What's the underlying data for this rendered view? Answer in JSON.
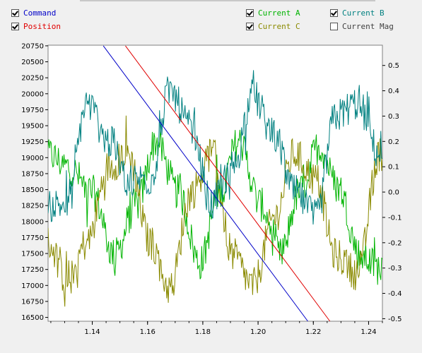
{
  "legend": {
    "items": [
      {
        "label": "Command",
        "checked": true,
        "color": "#0000c8"
      },
      {
        "label": "Position",
        "checked": true,
        "color": "#e00000"
      },
      {
        "label": "Current A",
        "checked": true,
        "color": "#00b400"
      },
      {
        "label": "Current C",
        "checked": true,
        "color": "#8a8a00"
      },
      {
        "label": "Current B",
        "checked": true,
        "color": "#008080"
      },
      {
        "label": "Current Mag",
        "checked": false,
        "color": "#404040"
      }
    ]
  },
  "chart_data": {
    "type": "line",
    "title": "",
    "xlabel": "",
    "ylabel": "",
    "y2label": "",
    "xlim": [
      1.124,
      1.245
    ],
    "ylim": [
      16440,
      20760
    ],
    "y2lim": [
      -0.51,
      0.58
    ],
    "x_ticks": [
      "1.14",
      "1.16",
      "1.18",
      "1.20",
      "1.22",
      "1.24"
    ],
    "y_ticks": [
      "20750",
      "20500",
      "20250",
      "20000",
      "19750",
      "19500",
      "19250",
      "19000",
      "18750",
      "18500",
      "18250",
      "18000",
      "17750",
      "17500",
      "17250",
      "17000",
      "16750",
      "16500"
    ],
    "y2_ticks": [
      "0.5",
      "0.4",
      "0.3",
      "0.2",
      "0.1",
      "0.0",
      "-0.1",
      "-0.2",
      "-0.3",
      "-0.4",
      "-0.5"
    ],
    "grid": false,
    "series": [
      {
        "name": "Command",
        "axis": "left",
        "color": "#0000c8",
        "x": [
          1.144,
          1.218
        ],
        "y": [
          20750,
          16440
        ]
      },
      {
        "name": "Position",
        "axis": "left",
        "color": "#e00000",
        "x": [
          1.152,
          1.226
        ],
        "y": [
          20750,
          16440
        ]
      },
      {
        "name": "Current A",
        "axis": "right",
        "color": "#00b400",
        "x": [
          1.124,
          1.131,
          1.14,
          1.148,
          1.156,
          1.163,
          1.171,
          1.179,
          1.186,
          1.193,
          1.201,
          1.208,
          1.215,
          1.222,
          1.229,
          1.237,
          1.244
        ],
        "y": [
          0.15,
          0.1,
          0.0,
          -0.25,
          -0.05,
          0.2,
          0.0,
          -0.28,
          0.0,
          0.2,
          -0.05,
          -0.25,
          0.0,
          0.18,
          0.02,
          -0.25,
          -0.3
        ]
      },
      {
        "name": "Current C",
        "axis": "right",
        "color": "#8a8a00",
        "x": [
          1.124,
          1.131,
          1.138,
          1.146,
          1.153,
          1.161,
          1.168,
          1.176,
          1.183,
          1.191,
          1.198,
          1.206,
          1.213,
          1.221,
          1.228,
          1.236,
          1.244
        ],
        "y": [
          -0.2,
          -0.35,
          -0.2,
          0.1,
          0.15,
          -0.2,
          -0.38,
          0.0,
          0.15,
          -0.25,
          -0.37,
          -0.1,
          0.15,
          0.05,
          -0.25,
          -0.32,
          0.15
        ]
      },
      {
        "name": "Current B",
        "axis": "right",
        "color": "#008080",
        "x": [
          1.124,
          1.131,
          1.138,
          1.146,
          1.153,
          1.161,
          1.168,
          1.176,
          1.183,
          1.191,
          1.198,
          1.206,
          1.213,
          1.221,
          1.228,
          1.236,
          1.244
        ],
        "y": [
          -0.05,
          -0.05,
          0.35,
          0.2,
          0.05,
          0.05,
          0.4,
          0.25,
          -0.05,
          0.1,
          0.38,
          0.22,
          0.0,
          -0.1,
          0.3,
          0.35,
          0.15
        ]
      }
    ]
  }
}
